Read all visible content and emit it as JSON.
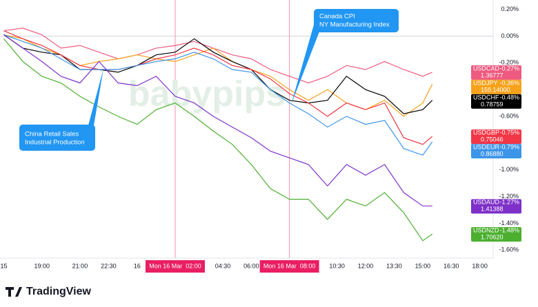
{
  "chart_data": {
    "type": "line",
    "x": [
      -7,
      -6,
      -5,
      -4,
      -3,
      -2,
      -1,
      0,
      1,
      2,
      3,
      4,
      5,
      6,
      7,
      8,
      9,
      10,
      11,
      12,
      13,
      14,
      15,
      15.5
    ],
    "xlim": [
      -7.2,
      18.7
    ],
    "xticks": [
      {
        "value": -7,
        "label": "15"
      },
      {
        "value": -5,
        "label": "19:00"
      },
      {
        "value": -3,
        "label": "21:00"
      },
      {
        "value": -1.5,
        "label": "22:30"
      },
      {
        "value": 0,
        "label": "16"
      },
      {
        "value": 4.5,
        "label": "04:30"
      },
      {
        "value": 6,
        "label": "06:00"
      },
      {
        "value": 10.5,
        "label": "10:30"
      },
      {
        "value": 12,
        "label": "12:00"
      },
      {
        "value": 13.5,
        "label": "13:30"
      },
      {
        "value": 15,
        "label": "15:00"
      },
      {
        "value": 16.5,
        "label": "16:30"
      },
      {
        "value": 18,
        "label": "18:00"
      }
    ],
    "event_lines": [
      {
        "x": 2,
        "label": "Mon 16 Mar  02:00"
      },
      {
        "x": 8,
        "label": "Mon 16 Mar  08:00"
      }
    ],
    "ylim": [
      -1.66,
      0.27
    ],
    "yticks": [
      {
        "value": 0.2,
        "label": "0.20%"
      },
      {
        "value": 0,
        "label": "0.00%"
      },
      {
        "value": -0.2,
        "label": "-0.20%"
      },
      {
        "value": -0.6,
        "label": "-0.60%"
      },
      {
        "value": -1.0,
        "label": "-1.00%"
      },
      {
        "value": -1.2,
        "label": "-1.20%"
      },
      {
        "value": -1.4,
        "label": "-1.40%"
      },
      {
        "value": -1.6,
        "label": "-1.60%"
      }
    ],
    "series": [
      {
        "name": "USDCAD",
        "color": "#ef5a80",
        "price": "1.36777",
        "values": [
          0.04,
          0.06,
          0.01,
          -0.09,
          -0.07,
          -0.12,
          -0.17,
          -0.14,
          -0.09,
          -0.07,
          -0.04,
          -0.09,
          -0.14,
          -0.17,
          -0.25,
          -0.3,
          -0.35,
          -0.3,
          -0.22,
          -0.25,
          -0.19,
          -0.25,
          -0.3,
          -0.27
        ],
        "value_labels": [
          null,
          null,
          null,
          null,
          null,
          null,
          null,
          null,
          null,
          null,
          null,
          null,
          null,
          null,
          null,
          null,
          null,
          null,
          null,
          null,
          null,
          null,
          null,
          "-0.27%"
        ]
      },
      {
        "name": "USDJPY",
        "color": "#f7a21b",
        "price": "159.14000",
        "values": [
          0.01,
          -0.02,
          -0.09,
          -0.14,
          -0.22,
          -0.19,
          -0.17,
          -0.14,
          -0.17,
          -0.19,
          -0.14,
          -0.09,
          -0.19,
          -0.25,
          -0.3,
          -0.4,
          -0.48,
          -0.4,
          -0.5,
          -0.55,
          -0.48,
          -0.6,
          -0.5,
          -0.36
        ],
        "value_labels": [
          null,
          null,
          null,
          null,
          null,
          null,
          null,
          null,
          null,
          null,
          null,
          null,
          null,
          null,
          null,
          null,
          null,
          null,
          null,
          null,
          null,
          null,
          null,
          "-0.36%"
        ]
      },
      {
        "name": "USDCHF",
        "color": "#000000",
        "price": "0.78759",
        "values": [
          0.01,
          -0.09,
          -0.12,
          -0.14,
          -0.25,
          -0.25,
          -0.27,
          -0.22,
          -0.14,
          -0.12,
          -0.02,
          -0.12,
          -0.19,
          -0.25,
          -0.4,
          -0.48,
          -0.5,
          -0.48,
          -0.3,
          -0.4,
          -0.45,
          -0.58,
          -0.55,
          -0.48
        ],
        "value_labels": [
          null,
          null,
          null,
          null,
          null,
          null,
          null,
          null,
          null,
          null,
          null,
          null,
          null,
          null,
          null,
          null,
          null,
          null,
          null,
          null,
          null,
          null,
          null,
          "-0.48%"
        ]
      },
      {
        "name": "USDGBP",
        "color": "#f23645",
        "price": "0.75046",
        "values": [
          0.04,
          -0.02,
          -0.07,
          -0.14,
          -0.22,
          -0.25,
          -0.25,
          -0.22,
          -0.17,
          -0.14,
          -0.09,
          -0.14,
          -0.22,
          -0.25,
          -0.32,
          -0.43,
          -0.5,
          -0.6,
          -0.5,
          -0.55,
          -0.5,
          -0.76,
          -0.81,
          -0.75
        ],
        "value_labels": [
          null,
          null,
          null,
          null,
          null,
          null,
          null,
          null,
          null,
          null,
          null,
          null,
          null,
          null,
          null,
          null,
          null,
          null,
          null,
          null,
          null,
          null,
          null,
          "-0.75%"
        ]
      },
      {
        "name": "USDEUR",
        "color": "#3d95ea",
        "price": "0.86880",
        "values": [
          0.01,
          -0.04,
          -0.09,
          -0.17,
          -0.25,
          -0.25,
          -0.25,
          -0.22,
          -0.19,
          -0.17,
          -0.12,
          -0.17,
          -0.25,
          -0.27,
          -0.4,
          -0.5,
          -0.58,
          -0.68,
          -0.6,
          -0.66,
          -0.63,
          -0.84,
          -0.89,
          -0.79
        ],
        "value_labels": [
          null,
          null,
          null,
          null,
          null,
          null,
          null,
          null,
          null,
          null,
          null,
          null,
          null,
          null,
          null,
          null,
          null,
          null,
          null,
          null,
          null,
          null,
          null,
          "-0.79%"
        ]
      },
      {
        "name": "USDAUD",
        "color": "#7e30c8",
        "price": "1.41388",
        "values": [
          0.01,
          -0.09,
          -0.19,
          -0.3,
          -0.35,
          -0.19,
          -0.35,
          -0.37,
          -0.3,
          -0.45,
          -0.5,
          -0.6,
          -0.68,
          -0.76,
          -0.86,
          -0.91,
          -0.96,
          -1.12,
          -0.96,
          -1.04,
          -0.96,
          -1.17,
          -1.27,
          -1.27
        ],
        "value_labels": [
          null,
          null,
          null,
          null,
          null,
          null,
          null,
          null,
          null,
          null,
          null,
          null,
          null,
          null,
          null,
          null,
          null,
          null,
          null,
          null,
          null,
          null,
          null,
          "-1.27%"
        ]
      },
      {
        "name": "USDNZD",
        "color": "#4caf30",
        "price": "1.70620",
        "values": [
          -0.02,
          -0.19,
          -0.3,
          -0.35,
          -0.45,
          -0.53,
          -0.6,
          -0.66,
          -0.55,
          -0.5,
          -0.6,
          -0.71,
          -0.81,
          -0.96,
          -1.14,
          -1.22,
          -1.22,
          -1.37,
          -1.22,
          -1.27,
          -1.17,
          -1.32,
          -1.53,
          -1.48
        ],
        "value_labels": [
          null,
          null,
          null,
          null,
          null,
          null,
          null,
          null,
          null,
          null,
          null,
          null,
          null,
          null,
          null,
          null,
          null,
          null,
          null,
          null,
          null,
          null,
          null,
          "-1.48%"
        ]
      }
    ],
    "annotations": [
      {
        "lines": [
          "China Retail Sales",
          "Industrial Production"
        ]
      },
      {
        "lines": [
          "Canada CPI",
          "NY Manufacturing Index"
        ]
      }
    ],
    "watermark": "babypips",
    "footer": "TradingView"
  }
}
